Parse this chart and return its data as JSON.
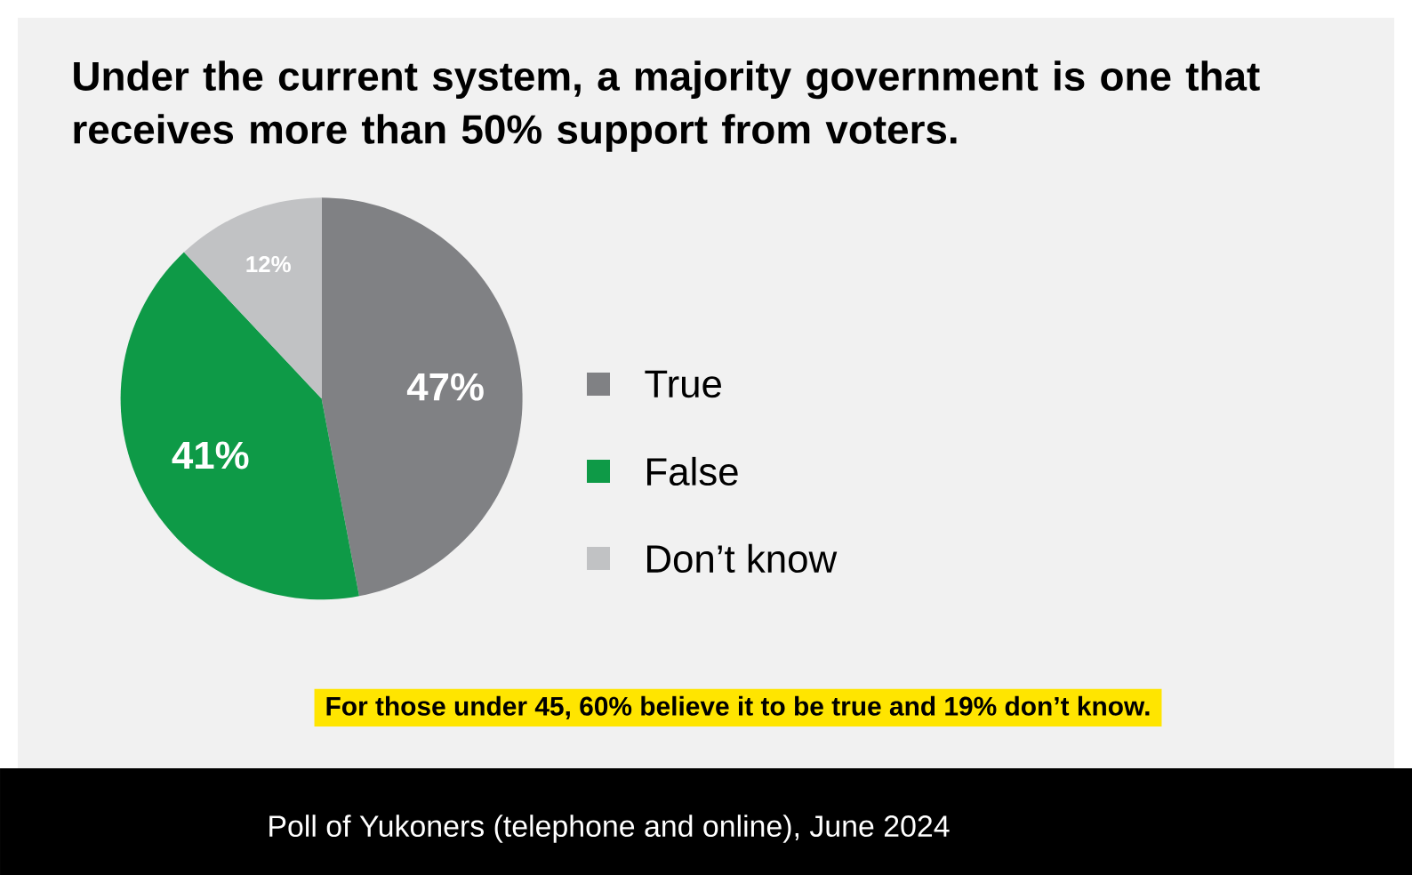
{
  "chart_data": {
    "type": "pie",
    "title": "Under the current system, a majority government is one that receives more than 50% support from voters.",
    "categories": [
      "True",
      "False",
      "Don’t know"
    ],
    "values": [
      47,
      41,
      12
    ],
    "colors": [
      "#808184",
      "#0e9a47",
      "#c1c2c4"
    ],
    "value_labels": [
      "47%",
      "41%",
      "12%"
    ],
    "legend": "right",
    "annotations": [
      "For those under 45, 60% believe it to be true and 19% don’t know.",
      "Poll of Yukoners (telephone and online), June 2024"
    ]
  }
}
